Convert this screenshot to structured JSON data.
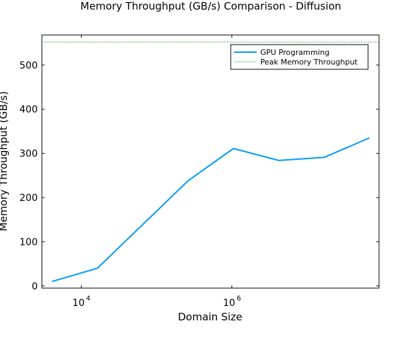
{
  "chart_data": {
    "type": "line",
    "title": "Memory Throughput (GB/s) Comparison - Diffusion",
    "xlabel": "Domain Size",
    "ylabel": "Memory Throughput (GB/s)",
    "xscale": "log",
    "xlim": [
      3000,
      90000000
    ],
    "ylim": [
      -5,
      568
    ],
    "yticks": [
      0,
      100,
      200,
      300,
      400,
      500
    ],
    "xticks": [
      10000,
      1000000
    ],
    "ytick_labels": [
      "0",
      "100",
      "200",
      "300",
      "400",
      "500"
    ],
    "xtick_labels": [
      {
        "base": "10",
        "exp": "4"
      },
      {
        "base": "10",
        "exp": "6"
      }
    ],
    "grid": false,
    "legend_position": "top-right",
    "series": [
      {
        "name": "GPU Programming",
        "color": "#009af9",
        "style": "solid",
        "x": [
          4096,
          16384,
          262144,
          1048576,
          4194304,
          16777216,
          67108864
        ],
        "y": [
          10,
          40,
          238,
          311,
          284,
          291,
          335
        ]
      }
    ],
    "hlines": [
      {
        "name": "Peak Memory Throughput",
        "color": "#008000",
        "style": "dotted",
        "y": 552
      }
    ]
  }
}
